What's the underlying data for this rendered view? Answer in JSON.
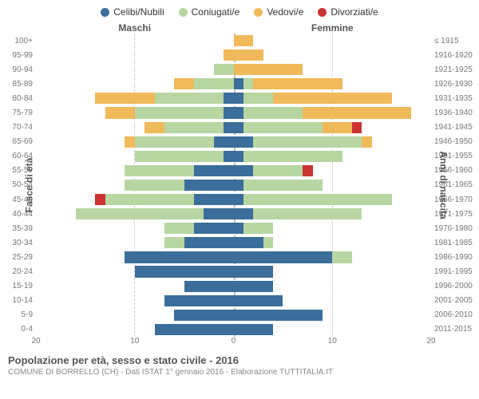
{
  "legend": {
    "items": [
      {
        "label": "Celibi/Nubili",
        "color": "#3b6e9a"
      },
      {
        "label": "Coniugati/e",
        "color": "#b7d6a2"
      },
      {
        "label": "Vedovi/e",
        "color": "#f0b95a"
      },
      {
        "label": "Divorziati/e",
        "color": "#cc3333"
      }
    ]
  },
  "headers": {
    "male": "Maschi",
    "female": "Femmine"
  },
  "axis_labels": {
    "left": "Fasce di età",
    "right": "Anni di nascita"
  },
  "chart": {
    "type": "population-pyramid",
    "xmax": 20,
    "xticks": [
      20,
      10,
      0,
      10,
      20
    ],
    "grid_color": "#cccccc",
    "background_color": "#ffffff",
    "age_groups": [
      "100+",
      "95-99",
      "90-94",
      "85-89",
      "80-84",
      "75-79",
      "70-74",
      "65-69",
      "60-64",
      "55-59",
      "50-54",
      "45-49",
      "40-44",
      "35-39",
      "30-34",
      "25-29",
      "20-24",
      "15-19",
      "10-14",
      "5-9",
      "0-4"
    ],
    "birth_years": [
      "≤ 1915",
      "1916-1920",
      "1921-1925",
      "1926-1930",
      "1931-1935",
      "1936-1940",
      "1941-1945",
      "1946-1950",
      "1951-1955",
      "1956-1960",
      "1961-1965",
      "1966-1970",
      "1971-1975",
      "1976-1980",
      "1981-1985",
      "1986-1990",
      "1991-1995",
      "1996-2000",
      "2001-2005",
      "2006-2010",
      "2011-2015"
    ],
    "male": [
      {
        "cel": 0,
        "con": 0,
        "ved": 0,
        "div": 0
      },
      {
        "cel": 0,
        "con": 0,
        "ved": 1,
        "div": 0
      },
      {
        "cel": 0,
        "con": 2,
        "ved": 0,
        "div": 0
      },
      {
        "cel": 0,
        "con": 4,
        "ved": 2,
        "div": 0
      },
      {
        "cel": 1,
        "con": 7,
        "ved": 6,
        "div": 0
      },
      {
        "cel": 1,
        "con": 9,
        "ved": 3,
        "div": 0
      },
      {
        "cel": 1,
        "con": 6,
        "ved": 2,
        "div": 0
      },
      {
        "cel": 2,
        "con": 8,
        "ved": 1,
        "div": 0
      },
      {
        "cel": 1,
        "con": 9,
        "ved": 0,
        "div": 0
      },
      {
        "cel": 4,
        "con": 7,
        "ved": 0,
        "div": 0
      },
      {
        "cel": 5,
        "con": 6,
        "ved": 0,
        "div": 0
      },
      {
        "cel": 4,
        "con": 9,
        "ved": 0,
        "div": 1
      },
      {
        "cel": 3,
        "con": 13,
        "ved": 0,
        "div": 0
      },
      {
        "cel": 4,
        "con": 3,
        "ved": 0,
        "div": 0
      },
      {
        "cel": 5,
        "con": 2,
        "ved": 0,
        "div": 0
      },
      {
        "cel": 11,
        "con": 0,
        "ved": 0,
        "div": 0
      },
      {
        "cel": 10,
        "con": 0,
        "ved": 0,
        "div": 0
      },
      {
        "cel": 5,
        "con": 0,
        "ved": 0,
        "div": 0
      },
      {
        "cel": 7,
        "con": 0,
        "ved": 0,
        "div": 0
      },
      {
        "cel": 6,
        "con": 0,
        "ved": 0,
        "div": 0
      },
      {
        "cel": 8,
        "con": 0,
        "ved": 0,
        "div": 0
      }
    ],
    "female": [
      {
        "cel": 0,
        "con": 0,
        "ved": 2,
        "div": 0
      },
      {
        "cel": 0,
        "con": 0,
        "ved": 3,
        "div": 0
      },
      {
        "cel": 0,
        "con": 0,
        "ved": 7,
        "div": 0
      },
      {
        "cel": 1,
        "con": 1,
        "ved": 9,
        "div": 0
      },
      {
        "cel": 1,
        "con": 3,
        "ved": 12,
        "div": 0
      },
      {
        "cel": 1,
        "con": 6,
        "ved": 11,
        "div": 0
      },
      {
        "cel": 1,
        "con": 8,
        "ved": 3,
        "div": 1
      },
      {
        "cel": 2,
        "con": 11,
        "ved": 1,
        "div": 0
      },
      {
        "cel": 1,
        "con": 10,
        "ved": 0,
        "div": 0
      },
      {
        "cel": 2,
        "con": 5,
        "ved": 0,
        "div": 1
      },
      {
        "cel": 1,
        "con": 8,
        "ved": 0,
        "div": 0
      },
      {
        "cel": 1,
        "con": 15,
        "ved": 0,
        "div": 0
      },
      {
        "cel": 2,
        "con": 11,
        "ved": 0,
        "div": 0
      },
      {
        "cel": 1,
        "con": 3,
        "ved": 0,
        "div": 0
      },
      {
        "cel": 3,
        "con": 1,
        "ved": 0,
        "div": 0
      },
      {
        "cel": 10,
        "con": 2,
        "ved": 0,
        "div": 0
      },
      {
        "cel": 4,
        "con": 0,
        "ved": 0,
        "div": 0
      },
      {
        "cel": 4,
        "con": 0,
        "ved": 0,
        "div": 0
      },
      {
        "cel": 5,
        "con": 0,
        "ved": 0,
        "div": 0
      },
      {
        "cel": 9,
        "con": 0,
        "ved": 0,
        "div": 0
      },
      {
        "cel": 4,
        "con": 0,
        "ved": 0,
        "div": 0
      }
    ]
  },
  "title": "Popolazione per età, sesso e stato civile - 2016",
  "subtitle": "COMUNE DI BORRELLO (CH) - Dati ISTAT 1° gennaio 2016 - Elaborazione TUTTITALIA.IT"
}
